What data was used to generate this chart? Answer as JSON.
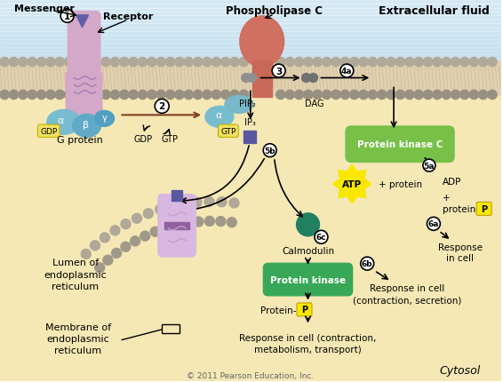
{
  "bg_extracellular": "#c8e8f2",
  "bg_cytosol": "#f5e8b8",
  "bg_membrane_fill": "#d8c8a8",
  "bead_color": "#b8b0a0",
  "bead_color2": "#989088",
  "receptor_color": "#d4a8c8",
  "phospholipase_color": "#d07868",
  "g_protein_color": "#80bcd0",
  "alpha_separated_color": "#80bcd0",
  "protein_kinase_c_color": "#78c048",
  "protein_kinase_color": "#38a858",
  "calmodulin_color": "#208860",
  "ip3_color": "#5858a0",
  "messenger_color": "#6868b0",
  "er_outer_color": "#c8a0d0",
  "er_inner_color": "#e0c8e8",
  "er_lumen_color": "#f0e0a0",
  "atp_color": "#f8e800",
  "p_yellow": "#f8e800",
  "title_extracellular": "Extracellular fluid",
  "title_cytosol": "Cytosol",
  "label_messenger": "Messenger",
  "label_receptor": "Receptor",
  "label_phospholipase": "Phospholipase C",
  "label_gprotein": "G protein",
  "label_pip2": "PIP₂",
  "label_dag": "DAG",
  "label_ip3": "IP₃",
  "label_protein_kinase_c": "Protein kinase C",
  "label_atp": "ATP",
  "label_protein": "+ protein",
  "label_adp": "ADP",
  "label_adp2": "+\nprotein-",
  "label_response_cell1": "Response\nin cell",
  "label_calmodulin": "Calmodulin",
  "label_protein_kinase": "Protein kinase",
  "label_protein_p": "Protein-",
  "label_response_cell2": "Response in cell\n(contraction, secretion)",
  "label_response_cell3": "Response in cell (contraction,\nmetabolism, transport)",
  "label_lumen": "Lumen of\nendoplasmic\nreticulum",
  "label_membrane_er": "Membrane of\nendoplasmic\nreticulum",
  "label_copyright": "© 2011 Pearson Education, Inc."
}
